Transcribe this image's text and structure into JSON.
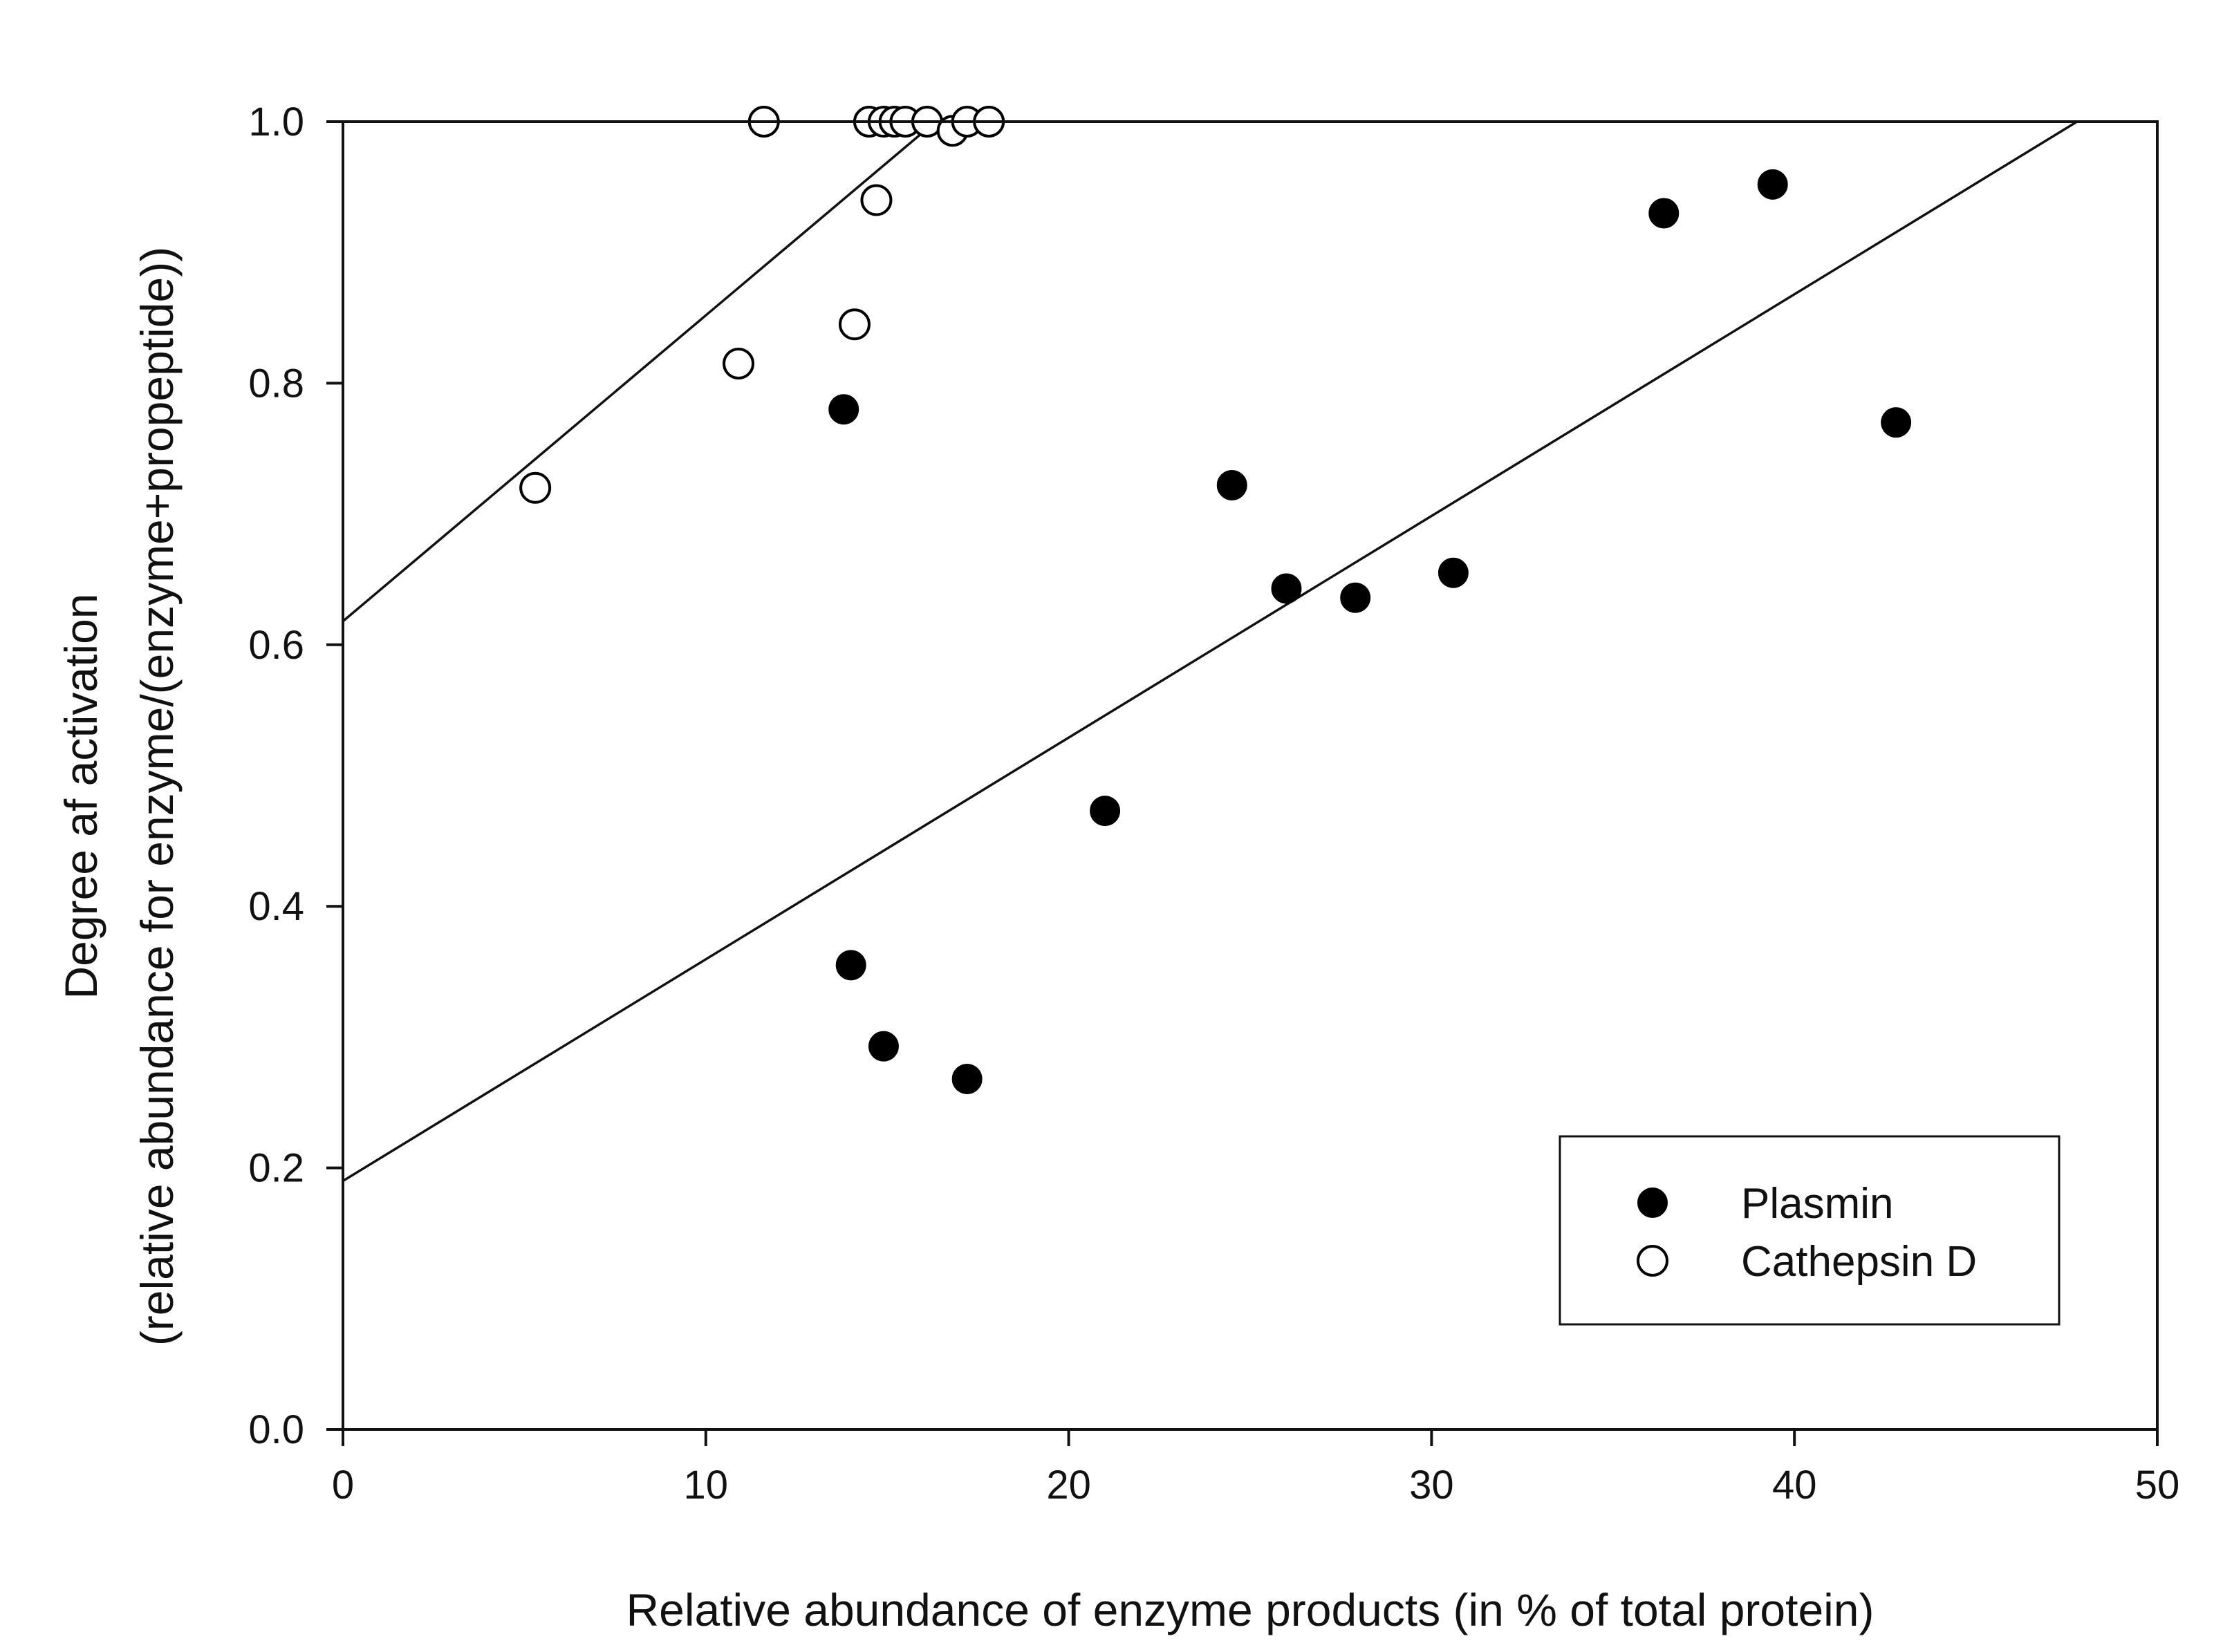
{
  "chart_data": {
    "type": "scatter",
    "title": "",
    "xlabel": "Relative abundance of enzyme products (in % of total protein)",
    "ylabel_lines": [
      "Degree af activation",
      "(relative abundance for enzyme/(enzyme+propeptide))"
    ],
    "xlim": [
      0,
      50
    ],
    "ylim": [
      0,
      1.0
    ],
    "x_ticks": [
      0,
      10,
      20,
      30,
      40,
      50
    ],
    "x_tick_labels": [
      "0",
      "10",
      "20",
      "30",
      "40",
      "50"
    ],
    "y_ticks": [
      0,
      0.2,
      0.4,
      0.6,
      0.8,
      1.0
    ],
    "y_tick_labels": [
      "0.0",
      "0.2",
      "0.4",
      "0.6",
      "0.8",
      "1.0"
    ],
    "grid": false,
    "legend_position": "bottom-right",
    "series": [
      {
        "name": "Plasmin",
        "marker": "filled-circle",
        "color": "#000000",
        "points": [
          [
            13.8,
            0.78
          ],
          [
            14.0,
            0.355
          ],
          [
            14.9,
            0.293
          ],
          [
            17.2,
            0.268
          ],
          [
            21.0,
            0.473
          ],
          [
            24.5,
            0.722
          ],
          [
            26.0,
            0.643
          ],
          [
            27.9,
            0.636
          ],
          [
            30.6,
            0.655
          ],
          [
            36.4,
            0.93
          ],
          [
            39.4,
            0.952
          ],
          [
            42.8,
            0.77
          ]
        ],
        "fit_line": {
          "intercept": 0.19,
          "slope": 0.01695
        }
      },
      {
        "name": "Cathepsin D",
        "marker": "open-circle",
        "color": "#000000",
        "points": [
          [
            5.3,
            0.72
          ],
          [
            10.9,
            0.815
          ],
          [
            11.6,
            1.0
          ],
          [
            14.1,
            0.845
          ],
          [
            14.5,
            1.0
          ],
          [
            14.7,
            0.94
          ],
          [
            14.9,
            1.0
          ],
          [
            15.2,
            1.0
          ],
          [
            15.5,
            1.0
          ],
          [
            16.1,
            1.0
          ],
          [
            16.8,
            0.993
          ],
          [
            17.2,
            1.0
          ],
          [
            17.8,
            1.0
          ]
        ],
        "fit_line": {
          "intercept": 0.618,
          "slope": 0.02339
        }
      }
    ]
  }
}
